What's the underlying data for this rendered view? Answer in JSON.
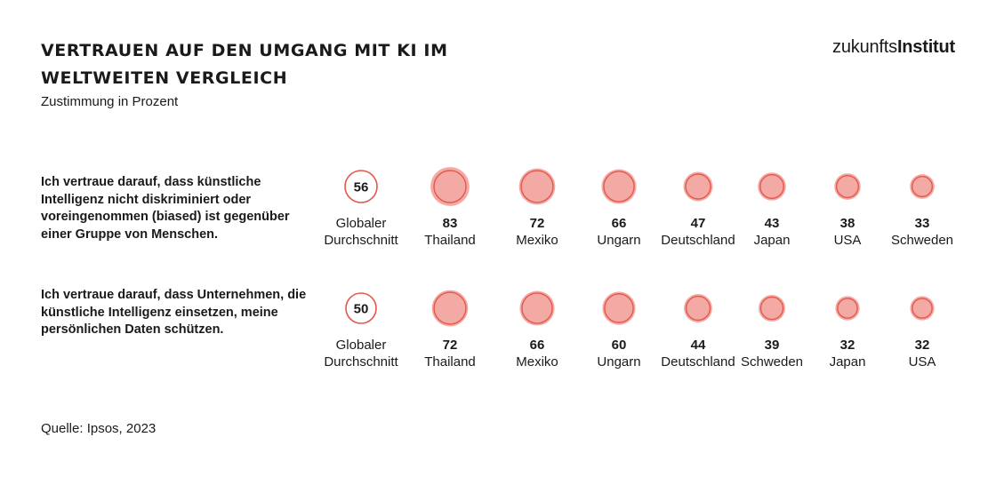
{
  "header": {
    "title": "Vertrauen auf den Umgang mit KI im weltweiten Vergleich",
    "subtitle": "Zustimmung in Prozent",
    "logo_light": "zukunfts",
    "logo_bold": "Institut"
  },
  "footer": {
    "source": "Quelle: Ipsos, 2023"
  },
  "colors": {
    "ring": "#e4574c",
    "fill": "#f4aaa4",
    "highlight_fill": "#ffffff",
    "text": "#1a1a1a"
  },
  "chart_data": {
    "type": "bubble",
    "title": "Vertrauen auf den Umgang mit KI im weltweiten Vergleich",
    "subtitle": "Zustimmung in Prozent",
    "unit": "%",
    "rows": [
      {
        "statement": "Ich vertraue darauf, dass künstliche Intelligenz nicht diskriminiert oder voreingenommen (biased) ist gegenüber einer Gruppe von Menschen.",
        "items": [
          {
            "label_lines": [
              "Globaler",
              "Durchschnitt"
            ],
            "value": 56,
            "highlight": true
          },
          {
            "label_lines": [
              "Thailand"
            ],
            "value": 83
          },
          {
            "label_lines": [
              "Mexiko"
            ],
            "value": 72
          },
          {
            "label_lines": [
              "Ungarn"
            ],
            "value": 66
          },
          {
            "label_lines": [
              "Deutschland"
            ],
            "value": 47
          },
          {
            "label_lines": [
              "Japan"
            ],
            "value": 43
          },
          {
            "label_lines": [
              "USA"
            ],
            "value": 38
          },
          {
            "label_lines": [
              "Schweden"
            ],
            "value": 33
          }
        ]
      },
      {
        "statement": "Ich vertraue darauf, dass Unternehmen, die künstliche Intelligenz einsetzen, meine persönlichen Daten schützen.",
        "items": [
          {
            "label_lines": [
              "Globaler",
              "Durchschnitt"
            ],
            "value": 50,
            "highlight": true
          },
          {
            "label_lines": [
              "Thailand"
            ],
            "value": 72
          },
          {
            "label_lines": [
              "Mexiko"
            ],
            "value": 66
          },
          {
            "label_lines": [
              "Ungarn"
            ],
            "value": 60
          },
          {
            "label_lines": [
              "Deutschland"
            ],
            "value": 44
          },
          {
            "label_lines": [
              "Schweden"
            ],
            "value": 39
          },
          {
            "label_lines": [
              "Japan"
            ],
            "value": 32
          },
          {
            "label_lines": [
              "USA"
            ],
            "value": 32
          }
        ]
      }
    ]
  }
}
